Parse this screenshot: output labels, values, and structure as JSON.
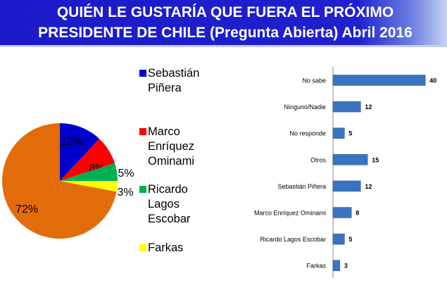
{
  "header": {
    "title_line1": "QUIÉN LE GUSTARÍA QUE FUERA EL PRÓXIMO",
    "title_line2": "PRESIDENTE DE CHILE (Pregunta Abierta) Abril 2016"
  },
  "chart_data": [
    {
      "type": "pie",
      "slices": [
        {
          "name": "Sebastián Piñera",
          "legend_lines": [
            "Sebastián",
            "Piñera"
          ],
          "value": 12,
          "label": "12%",
          "color": "#0000cc"
        },
        {
          "name": "Marco Enríquez Ominami",
          "legend_lines": [
            "Marco",
            "Enríquez",
            "Ominami"
          ],
          "value": 8,
          "label": "8%",
          "color": "#ff0000"
        },
        {
          "name": "Ricardo Lagos Escobar",
          "legend_lines": [
            "Ricardo",
            "Lagos",
            "Escobar"
          ],
          "value": 5,
          "label": "5%",
          "color": "#00b050"
        },
        {
          "name": "Farkas",
          "legend_lines": [
            "Farkas"
          ],
          "value": 3,
          "label": "3%",
          "color": "#ffff00"
        },
        {
          "name": "",
          "value": 72,
          "label": "72%",
          "color": "#e36c0a"
        }
      ],
      "legend_placement": "right"
    },
    {
      "type": "bar",
      "orientation": "horizontal",
      "categories": [
        "No sabe",
        "Ninguno/Nadie",
        "No responde",
        "Otros",
        "Sebastián Piñera",
        "Marco Enríquez Ominami",
        "Ricardo Lagos Escobar",
        "Farkas"
      ],
      "values": [
        40,
        12,
        5,
        15,
        12,
        8,
        5,
        3
      ],
      "color": "#3a73c0",
      "data_labels": true,
      "grid": false
    }
  ]
}
